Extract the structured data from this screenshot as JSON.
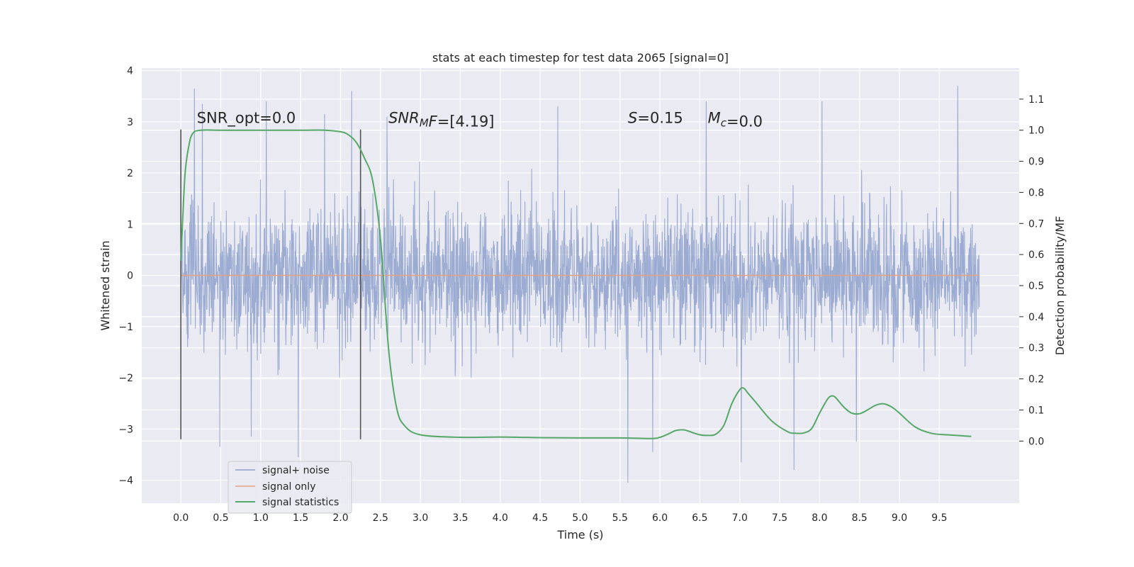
{
  "chart_data": {
    "type": "line",
    "title": "stats at each timestep for test data 2065 [signal=0]",
    "xlabel": "Time (s)",
    "ylabel": "Whitened strain",
    "y2label": "Detection probability/MF",
    "xlim": [
      -0.49,
      10.5
    ],
    "ylim": [
      -4.45,
      4.05
    ],
    "y2lim": [
      -0.2,
      1.2
    ],
    "x_ticks": [
      "0.0",
      "0.5",
      "1.0",
      "1.5",
      "2.0",
      "2.5",
      "3.0",
      "3.5",
      "4.0",
      "4.5",
      "5.0",
      "5.5",
      "6.0",
      "6.5",
      "7.0",
      "7.5",
      "8.0",
      "8.5",
      "9.0",
      "9.5"
    ],
    "y_ticks": [
      "4",
      "3",
      "2",
      "1",
      "0",
      "−1",
      "−2",
      "−3",
      "−4"
    ],
    "y2_ticks": [
      "1.1",
      "1.0",
      "0.9",
      "0.8",
      "0.7",
      "0.6",
      "0.5",
      "0.4",
      "0.3",
      "0.2",
      "0.1",
      "0.0"
    ],
    "grid": true,
    "legend_position": "lower-left",
    "colors": {
      "background": "#eaeaf2",
      "noise": "#8da0cb",
      "signal": "#e5a283",
      "stats": "#55a868",
      "markers": "#555555"
    },
    "annotations": [
      {
        "x": 0.2,
        "y": 2.98,
        "segments": [
          {
            "text": "SNR_opt=0.0",
            "italic": false
          }
        ]
      },
      {
        "x": 2.6,
        "y": 2.98,
        "segments": [
          {
            "text": "SNR",
            "italic": true
          },
          {
            "text": "M",
            "italic": true,
            "sub": true
          },
          {
            "text": "F",
            "italic": true
          },
          {
            "text": "=[4.19]",
            "italic": false
          }
        ]
      },
      {
        "x": 5.6,
        "y": 2.98,
        "segments": [
          {
            "text": "S",
            "italic": true
          },
          {
            "text": "=0.15",
            "italic": false
          }
        ]
      },
      {
        "x": 6.6,
        "y": 2.98,
        "segments": [
          {
            "text": "M",
            "italic": true
          },
          {
            "text": "c",
            "italic": true,
            "sub": true
          },
          {
            "text": "=0.0",
            "italic": false
          }
        ]
      }
    ],
    "vertical_markers": [
      {
        "x": 0.0,
        "ymin": -3.2,
        "ymax": 2.85
      },
      {
        "x": 2.25,
        "ymin": -3.2,
        "ymax": 2.85
      }
    ],
    "series": [
      {
        "name": "signal+ noise",
        "kind": "noise",
        "x_range": [
          0.0,
          10.0
        ],
        "typical_range": [
          -2.0,
          2.5
        ],
        "spikes": [
          {
            "x": 0.17,
            "y": 3.65
          },
          {
            "x": 0.27,
            "y": 3.35
          },
          {
            "x": 1.07,
            "y": 3.4
          },
          {
            "x": 1.8,
            "y": 3.15
          },
          {
            "x": 2.14,
            "y": 3.6
          },
          {
            "x": 2.58,
            "y": 3.1
          },
          {
            "x": 4.72,
            "y": 3.3
          },
          {
            "x": 6.58,
            "y": 3.4
          },
          {
            "x": 8.03,
            "y": 3.4
          },
          {
            "x": 9.73,
            "y": 3.7
          },
          {
            "x": 0.49,
            "y": -3.35
          },
          {
            "x": 0.88,
            "y": -3.15
          },
          {
            "x": 1.47,
            "y": -3.55
          },
          {
            "x": 5.6,
            "y": -4.05
          },
          {
            "x": 5.91,
            "y": -3.45
          },
          {
            "x": 7.02,
            "y": -3.65
          },
          {
            "x": 7.68,
            "y": -3.8
          },
          {
            "x": 8.46,
            "y": -3.25
          }
        ]
      },
      {
        "name": "signal only",
        "kind": "line",
        "x": [
          0.0,
          10.0
        ],
        "y": [
          0.0,
          0.0
        ]
      },
      {
        "name": "signal statistics",
        "kind": "line",
        "axis": "right",
        "x": [
          0.0,
          0.05,
          0.1,
          0.15,
          0.25,
          0.5,
          1.0,
          1.5,
          1.8,
          2.0,
          2.1,
          2.2,
          2.3,
          2.4,
          2.5,
          2.6,
          2.7,
          2.8,
          3.0,
          3.5,
          4.0,
          4.5,
          5.0,
          5.5,
          5.9,
          6.0,
          6.1,
          6.2,
          6.3,
          6.4,
          6.5,
          6.6,
          6.7,
          6.8,
          6.9,
          7.0,
          7.05,
          7.1,
          7.2,
          7.4,
          7.6,
          7.7,
          7.8,
          7.9,
          8.0,
          8.1,
          8.15,
          8.2,
          8.3,
          8.4,
          8.5,
          8.6,
          8.7,
          8.8,
          8.9,
          9.0,
          9.2,
          9.4,
          9.6,
          9.9
        ],
        "y": [
          0.58,
          0.85,
          0.95,
          0.99,
          1.0,
          1.0,
          1.0,
          1.0,
          1.0,
          0.995,
          0.985,
          0.96,
          0.91,
          0.84,
          0.65,
          0.3,
          0.11,
          0.05,
          0.02,
          0.012,
          0.013,
          0.011,
          0.01,
          0.01,
          0.008,
          0.012,
          0.022,
          0.034,
          0.036,
          0.028,
          0.02,
          0.018,
          0.022,
          0.05,
          0.12,
          0.165,
          0.17,
          0.155,
          0.125,
          0.065,
          0.03,
          0.025,
          0.026,
          0.04,
          0.09,
          0.135,
          0.145,
          0.14,
          0.11,
          0.09,
          0.088,
          0.1,
          0.115,
          0.12,
          0.11,
          0.09,
          0.045,
          0.025,
          0.02,
          0.015
        ]
      }
    ]
  }
}
